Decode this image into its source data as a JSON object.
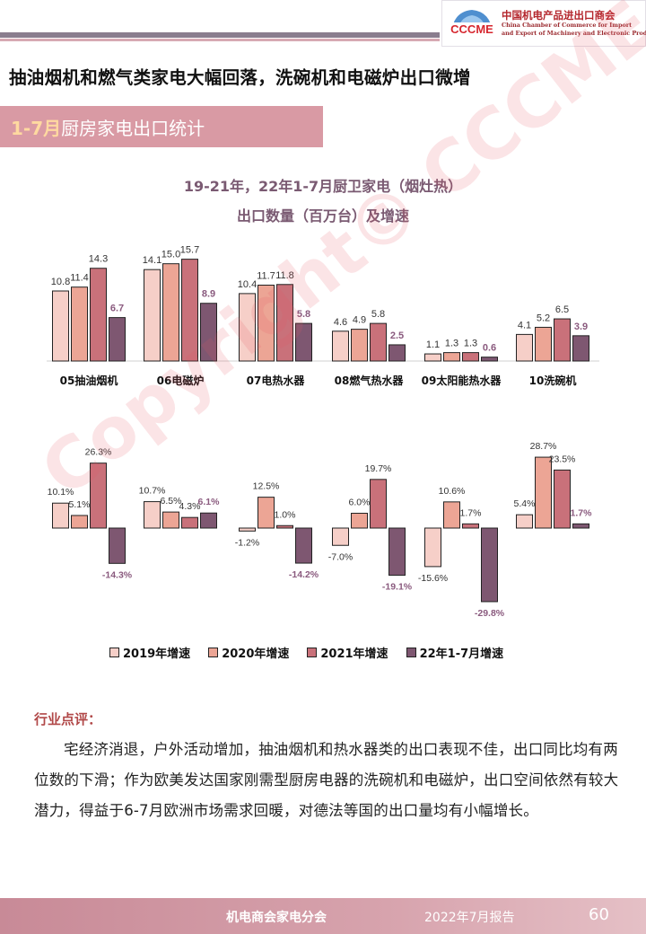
{
  "header": {
    "org_name_cn": "中国机电产品进出口商会",
    "org_name_en_line1": "China Chamber of Commerce for Import",
    "org_name_en_line2": "and Export of Machinery and Electronic Products",
    "logo_text": "CCCME"
  },
  "headline": "抽油烟机和燃气类家电大幅回落，洗碗机和电磁炉出口微增",
  "section": {
    "highlight": "1-7月",
    "title": "厨房家电出口统计"
  },
  "chart_data": [
    {
      "type": "bar",
      "title": "19-21年，22年1-7月厨卫家电（烟灶热）",
      "subtitle": "出口数量（百万台）及增速",
      "categories": [
        "05抽油烟机",
        "06电磁炉",
        "07电热水器",
        "08燃气热水器",
        "09太阳能热水器",
        "10洗碗机"
      ],
      "series": [
        {
          "name": "2019年增速",
          "values": [
            10.8,
            14.1,
            10.4,
            4.6,
            1.1,
            4.1
          ]
        },
        {
          "name": "2020年增速",
          "values": [
            11.4,
            15.0,
            11.7,
            4.9,
            1.3,
            5.2
          ]
        },
        {
          "name": "2021年增速",
          "values": [
            14.3,
            15.7,
            11.8,
            5.8,
            1.3,
            6.5
          ]
        },
        {
          "name": "22年1-7月增速",
          "values": [
            6.7,
            8.9,
            5.8,
            2.5,
            0.6,
            3.9
          ]
        }
      ],
      "data_labels": [
        [
          "10.8",
          "14.1",
          "10.4",
          "4.6",
          "1.1",
          "4.1"
        ],
        [
          "11.4",
          "15.0",
          "11.7",
          "4.9",
          "1.3",
          "5.2"
        ],
        [
          "14.3",
          "15.7",
          "11.8",
          "5.8",
          "1.3",
          "6.5"
        ],
        [
          "6.7",
          "8.9",
          "5.8",
          "2.5",
          "0.6",
          "3.9"
        ]
      ],
      "ylim": [
        0,
        18
      ],
      "grid": false
    },
    {
      "type": "bar",
      "categories": [
        "05抽油烟机",
        "06电磁炉",
        "07电热水器",
        "08燃气热水器",
        "09太阳能热水器",
        "10洗碗机"
      ],
      "series": [
        {
          "name": "2019年增速",
          "values": [
            10.1,
            10.7,
            -1.2,
            -7.0,
            -15.6,
            5.4
          ]
        },
        {
          "name": "2020年增速",
          "values": [
            5.1,
            6.5,
            12.5,
            6.0,
            10.6,
            28.7
          ]
        },
        {
          "name": "2021年增速",
          "values": [
            26.3,
            4.3,
            1.0,
            19.7,
            1.7,
            23.5
          ]
        },
        {
          "name": "22年1-7月增速",
          "values": [
            -14.3,
            6.1,
            -14.2,
            -19.1,
            -29.8,
            1.7
          ]
        }
      ],
      "data_labels": [
        [
          "10.1%",
          "10.7%",
          "-1.2%",
          "-7.0%",
          "-15.6%",
          "5.4%"
        ],
        [
          "5.1%",
          "6.5%",
          "12.5%",
          "6.0%",
          "10.6%",
          "28.7%"
        ],
        [
          "26.3%",
          "4.3%",
          "1.0%",
          "19.7%",
          "1.7%",
          "23.5%"
        ],
        [
          "-14.3%",
          "6.1%",
          "-14.2%",
          "-19.1%",
          "-29.8%",
          "1.7%"
        ]
      ],
      "ylim": [
        -32,
        32
      ],
      "legend_position": "bottom",
      "grid": false
    }
  ],
  "series_colors": [
    "#f6cfc8",
    "#eca595",
    "#c9717a",
    "#7e5771"
  ],
  "review": {
    "title": "行业点评：",
    "body": "宅经济消退，户外活动增加，抽油烟机和热水器类的出口表现不佳，出口同比均有两位数的下滑；作为欧美发达国家刚需型厨房电器的洗碗机和电磁炉，出口空间依然有较大潜力，得益于6-7月欧洲市场需求回暖，对德法等国的出口量均有小幅增长。"
  },
  "footer": {
    "org": "机电商会家电分会",
    "report": "2022年7月报告",
    "page": "60"
  },
  "watermark": "Copyright© CCCME"
}
